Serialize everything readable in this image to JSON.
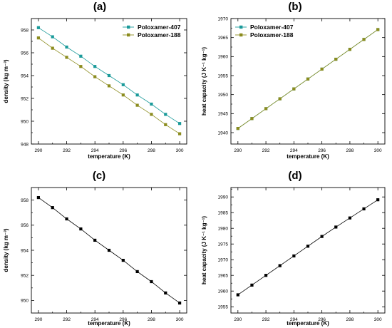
{
  "chart_data": [
    {
      "panel": "(a)",
      "type": "line",
      "xlabel": "temperature (K)",
      "ylabel": "density (kg m⁻³)",
      "xlim": [
        289.5,
        300.5
      ],
      "ylim": [
        948,
        959
      ],
      "xticks": [
        290,
        292,
        294,
        296,
        298,
        300
      ],
      "yticks": [
        948,
        950,
        952,
        954,
        956,
        958
      ],
      "legend": "top-right",
      "x": [
        290,
        291,
        292,
        293,
        294,
        295,
        296,
        297,
        298,
        299,
        300
      ],
      "series": [
        {
          "name": "Poloxamer-407",
          "color": "#1a9a9a",
          "marker": "square",
          "values": [
            958.2,
            957.4,
            956.5,
            955.7,
            954.8,
            954.0,
            953.2,
            952.3,
            951.5,
            950.6,
            949.8
          ]
        },
        {
          "name": "Poloxamer-188",
          "color": "#8c8c1e",
          "marker": "square",
          "values": [
            957.3,
            956.4,
            955.6,
            954.8,
            953.9,
            953.1,
            952.3,
            951.4,
            950.6,
            949.7,
            948.9
          ]
        }
      ]
    },
    {
      "panel": "(b)",
      "type": "line",
      "xlabel": "temperature (K)",
      "ylabel": "heat capacity (J K⁻¹ kg⁻¹)",
      "xlim": [
        289.5,
        300.5
      ],
      "ylim": [
        1937,
        1970
      ],
      "xticks": [
        290,
        292,
        294,
        296,
        298,
        300
      ],
      "yticks": [
        1940,
        1945,
        1950,
        1955,
        1960,
        1965,
        1970
      ],
      "legend": "top-left",
      "x": [
        290,
        291,
        292,
        293,
        294,
        295,
        296,
        297,
        298,
        299,
        300
      ],
      "series": [
        {
          "name": "Poloxamer-407",
          "color": "#1a9a9a",
          "marker": "square",
          "values": [
            1941.1,
            1943.7,
            1946.3,
            1948.9,
            1951.5,
            1954.1,
            1956.7,
            1959.3,
            1961.9,
            1964.5,
            1967.1
          ]
        },
        {
          "name": "Poloxamer-188",
          "color": "#8c8c1e",
          "marker": "square",
          "values": [
            1941.1,
            1943.7,
            1946.3,
            1948.9,
            1951.5,
            1954.1,
            1956.7,
            1959.3,
            1961.9,
            1964.5,
            1967.1
          ]
        }
      ]
    },
    {
      "panel": "(c)",
      "type": "line",
      "xlabel": "temperature (K)",
      "ylabel": "density (kg m⁻³)",
      "xlim": [
        289.5,
        300.5
      ],
      "ylim": [
        949,
        959
      ],
      "xticks": [
        290,
        292,
        294,
        296,
        298,
        300
      ],
      "yticks": [
        950,
        952,
        954,
        956,
        958
      ],
      "x": [
        290,
        291,
        292,
        293,
        294,
        295,
        296,
        297,
        298,
        299,
        300
      ],
      "series": [
        {
          "color": "#000000",
          "marker": "square",
          "values": [
            958.2,
            957.4,
            956.5,
            955.7,
            954.8,
            954.0,
            953.2,
            952.3,
            951.5,
            950.6,
            949.8
          ]
        }
      ]
    },
    {
      "panel": "(d)",
      "type": "line",
      "xlabel": "temperature (K)",
      "ylabel": "heat capacity (J K⁻¹ kg⁻¹)",
      "xlim": [
        289.5,
        300.5
      ],
      "ylim": [
        1953,
        1993
      ],
      "xticks": [
        290,
        292,
        294,
        296,
        298,
        300
      ],
      "yticks": [
        1955,
        1960,
        1965,
        1970,
        1975,
        1980,
        1985,
        1990
      ],
      "x": [
        290,
        291,
        292,
        293,
        294,
        295,
        296,
        297,
        298,
        299,
        300
      ],
      "series": [
        {
          "color": "#000000",
          "marker": "square",
          "values": [
            1958.8,
            1961.9,
            1965.0,
            1968.1,
            1971.2,
            1974.3,
            1977.4,
            1980.4,
            1983.3,
            1986.2,
            1989.1
          ]
        }
      ]
    }
  ]
}
